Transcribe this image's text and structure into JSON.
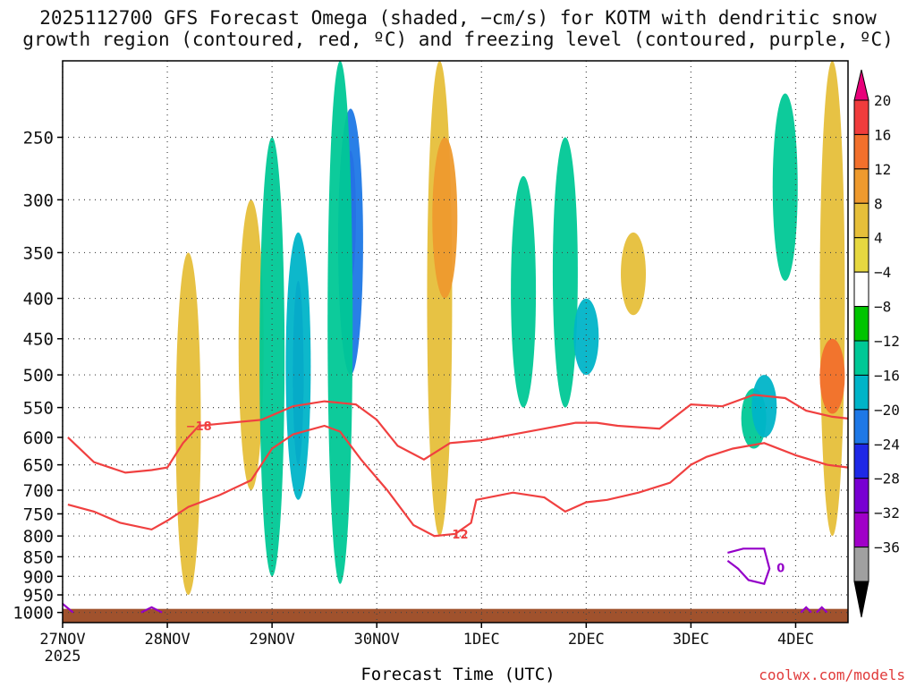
{
  "title_line1": "2025112700 GFS Forecast Omega (shaded, −cm/s) for KOTM with dendritic snow",
  "title_line2": "growth region (contoured, red, ºC) and freezing level (contoured, purple, ºC)",
  "credit": "coolwx.com/models",
  "colors": {
    "dgz": "#f04040",
    "freezing": "#9400c8",
    "ground": "#a0522d"
  },
  "chart_data": {
    "type": "heatmap",
    "title": "2025112700 GFS Forecast Omega (shaded, −cm/s) for KOTM with dendritic snow growth region (contoured, red, ºC) and freezing level (contoured, purple, ºC)",
    "xlabel": "Forecast Time (UTC)",
    "ylabel": "",
    "x_ticks": [
      {
        "day": 0,
        "label": "27NOV",
        "sublabel": "2025"
      },
      {
        "day": 1,
        "label": "28NOV"
      },
      {
        "day": 2,
        "label": "29NOV"
      },
      {
        "day": 3,
        "label": "30NOV"
      },
      {
        "day": 4,
        "label": "1DEC"
      },
      {
        "day": 5,
        "label": "2DEC"
      },
      {
        "day": 6,
        "label": "3DEC"
      },
      {
        "day": 7,
        "label": "4DEC"
      }
    ],
    "xlim_days": [
      0,
      7.5
    ],
    "y_ticks": [
      250,
      300,
      350,
      400,
      450,
      500,
      550,
      600,
      650,
      700,
      750,
      800,
      850,
      900,
      950,
      1000
    ],
    "ylim_hpa": [
      1030,
      200
    ],
    "y_scale": "log-pressure, inverted",
    "grid": true,
    "colorbar": {
      "labels": [
        "20",
        "16",
        "12",
        "8",
        "4",
        "−4",
        "−8",
        "−12",
        "−16",
        "−20",
        "−24",
        "−28",
        "−32",
        "−36"
      ],
      "colors": [
        "#e8007a",
        "#f03c3c",
        "#f2702c",
        "#ee9a2e",
        "#e6bf3a",
        "#e6d840",
        "#ffffff",
        "#00c400",
        "#00c896",
        "#00b4c8",
        "#1e78e6",
        "#1e28e6",
        "#7800d2",
        "#a000c8",
        "#a0a0a0",
        "#000000"
      ]
    },
    "omega_regions": [
      {
        "day": 1.2,
        "p_top": 350,
        "p_bot": 950,
        "value": 4
      },
      {
        "day": 1.8,
        "p_top": 300,
        "p_bot": 700,
        "value": 4
      },
      {
        "day": 2.0,
        "p_top": 250,
        "p_bot": 900,
        "value": -8
      },
      {
        "day": 2.25,
        "p_top": 430,
        "p_bot": 600,
        "value": -36
      },
      {
        "day": 2.25,
        "p_top": 380,
        "p_bot": 650,
        "value": -24
      },
      {
        "day": 2.25,
        "p_top": 330,
        "p_bot": 720,
        "value": -12
      },
      {
        "day": 2.75,
        "p_top": 260,
        "p_bot": 380,
        "value": -28
      },
      {
        "day": 2.75,
        "p_top": 230,
        "p_bot": 500,
        "value": -16
      },
      {
        "day": 2.65,
        "p_top": 200,
        "p_bot": 920,
        "value": -8
      },
      {
        "day": 3.6,
        "p_top": 200,
        "p_bot": 800,
        "value": 4
      },
      {
        "day": 3.65,
        "p_top": 250,
        "p_bot": 400,
        "value": 8
      },
      {
        "day": 4.4,
        "p_top": 280,
        "p_bot": 550,
        "value": -8
      },
      {
        "day": 4.8,
        "p_top": 250,
        "p_bot": 550,
        "value": -8
      },
      {
        "day": 5.0,
        "p_top": 400,
        "p_bot": 500,
        "value": -12
      },
      {
        "day": 5.45,
        "p_top": 330,
        "p_bot": 420,
        "value": 4
      },
      {
        "day": 6.6,
        "p_top": 520,
        "p_bot": 620,
        "value": -8
      },
      {
        "day": 6.7,
        "p_top": 500,
        "p_bot": 600,
        "value": -12
      },
      {
        "day": 6.9,
        "p_top": 220,
        "p_bot": 380,
        "value": -8
      },
      {
        "day": 7.35,
        "p_top": 200,
        "p_bot": 800,
        "value": 4
      },
      {
        "day": 7.35,
        "p_top": 450,
        "p_bot": 560,
        "value": 12
      }
    ],
    "dgz_contours": [
      {
        "label": "−18",
        "points": [
          [
            0.05,
            600
          ],
          [
            0.3,
            645
          ],
          [
            0.6,
            665
          ],
          [
            0.85,
            660
          ],
          [
            1.0,
            655
          ],
          [
            1.15,
            610
          ],
          [
            1.3,
            580
          ],
          [
            1.6,
            575
          ],
          [
            1.9,
            570
          ],
          [
            2.2,
            548
          ],
          [
            2.5,
            540
          ],
          [
            2.8,
            545
          ],
          [
            3.0,
            570
          ],
          [
            3.2,
            615
          ],
          [
            3.45,
            640
          ],
          [
            3.7,
            610
          ],
          [
            4.0,
            605
          ],
          [
            4.3,
            595
          ],
          [
            4.6,
            585
          ],
          [
            4.9,
            575
          ],
          [
            5.1,
            575
          ],
          [
            5.3,
            580
          ],
          [
            5.7,
            585
          ],
          [
            6.0,
            545
          ],
          [
            6.3,
            548
          ],
          [
            6.6,
            530
          ],
          [
            6.9,
            535
          ],
          [
            7.1,
            555
          ],
          [
            7.35,
            565
          ],
          [
            7.5,
            568
          ]
        ],
        "label_day": 1.45
      },
      {
        "label": "−12",
        "points": [
          [
            0.05,
            730
          ],
          [
            0.3,
            745
          ],
          [
            0.55,
            770
          ],
          [
            0.85,
            785
          ],
          [
            1.0,
            765
          ],
          [
            1.2,
            735
          ],
          [
            1.5,
            710
          ],
          [
            1.8,
            680
          ],
          [
            2.0,
            620
          ],
          [
            2.2,
            595
          ],
          [
            2.5,
            580
          ],
          [
            2.65,
            590
          ],
          [
            2.85,
            640
          ],
          [
            3.1,
            700
          ],
          [
            3.35,
            775
          ],
          [
            3.55,
            800
          ],
          [
            3.75,
            795
          ],
          [
            3.9,
            770
          ],
          [
            3.95,
            720
          ],
          [
            4.3,
            705
          ],
          [
            4.6,
            715
          ],
          [
            4.8,
            745
          ],
          [
            5.0,
            725
          ],
          [
            5.2,
            720
          ],
          [
            5.5,
            705
          ],
          [
            5.8,
            685
          ],
          [
            6.0,
            650
          ],
          [
            6.15,
            635
          ],
          [
            6.4,
            620
          ],
          [
            6.7,
            610
          ],
          [
            7.0,
            632
          ],
          [
            7.3,
            650
          ],
          [
            7.5,
            655
          ]
        ],
        "label_day": 3.8
      }
    ],
    "freezing_contours": [
      {
        "label": "0",
        "points": [
          [
            6.35,
            840
          ],
          [
            6.5,
            830
          ],
          [
            6.7,
            830
          ],
          [
            6.75,
            880
          ],
          [
            6.7,
            920
          ],
          [
            6.55,
            910
          ],
          [
            6.45,
            880
          ],
          [
            6.35,
            860
          ]
        ]
      },
      {
        "label": "",
        "points": [
          [
            0.0,
            975
          ],
          [
            0.1,
            1000
          ]
        ]
      },
      {
        "label": "",
        "points": [
          [
            0.75,
            1000
          ],
          [
            0.85,
            985
          ],
          [
            0.95,
            1000
          ]
        ]
      },
      {
        "label": "",
        "points": [
          [
            7.05,
            1000
          ],
          [
            7.1,
            985
          ],
          [
            7.15,
            1000
          ]
        ]
      },
      {
        "label": "",
        "points": [
          [
            7.2,
            1000
          ],
          [
            7.25,
            985
          ],
          [
            7.3,
            1000
          ]
        ]
      }
    ],
    "ground_top_hpa": 1000
  }
}
